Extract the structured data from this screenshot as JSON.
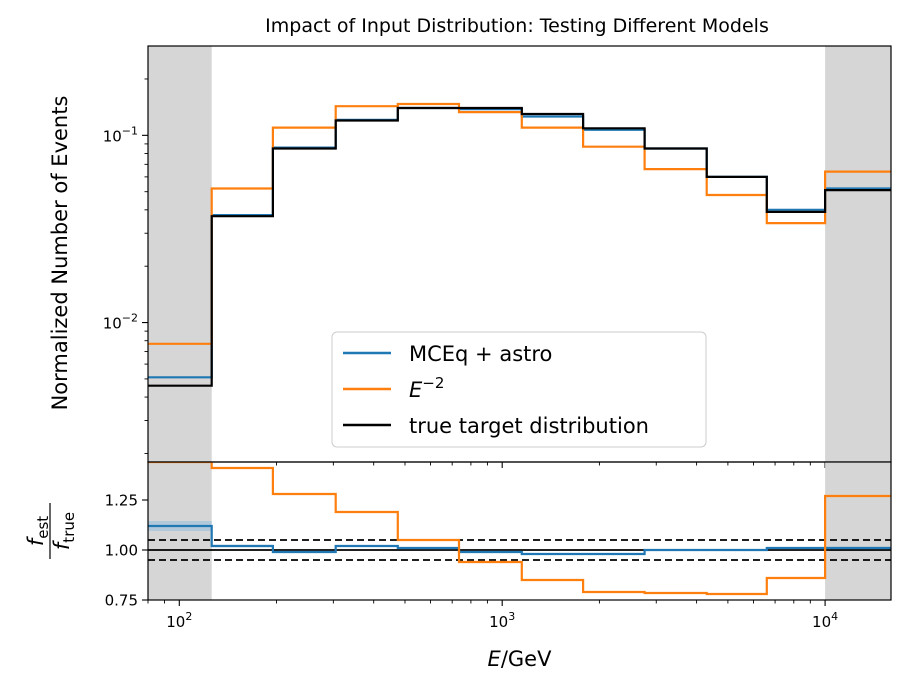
{
  "chart_data": {
    "type": "line",
    "title": "Impact of Input Distribution: Testing Different Models",
    "xlabel": "E/GeV",
    "ylabel_main": "Normalized Number of Events",
    "ylabel_ratio": {
      "numerator": "f",
      "numerator_sub": "est",
      "denominator": "f",
      "denominator_sub": "true"
    },
    "x_scale": "log",
    "y_scale_main": "log",
    "xlim": [
      80,
      16000
    ],
    "ylim_main": [
      0.0018,
      0.3
    ],
    "ylim_ratio": [
      0.75,
      1.44
    ],
    "x_ticks": [
      {
        "value": 100,
        "base": "10",
        "exp": "2"
      },
      {
        "value": 1000,
        "base": "10",
        "exp": "3"
      },
      {
        "value": 10000,
        "base": "10",
        "exp": "4"
      }
    ],
    "y_ticks_main": [
      {
        "value": 0.01,
        "base": "10",
        "exp": "−2"
      },
      {
        "value": 0.1,
        "base": "10",
        "exp": "−1"
      }
    ],
    "y_ticks_ratio": [
      {
        "value": 0.75,
        "label": "0.75"
      },
      {
        "value": 1.0,
        "label": "1.00"
      },
      {
        "value": 1.25,
        "label": "1.25"
      }
    ],
    "shaded_regions": [
      [
        80,
        126
      ],
      [
        10000,
        16000
      ]
    ],
    "bin_edges": [
      80,
      126,
      195,
      305,
      475,
      735,
      1150,
      1780,
      2760,
      4300,
      6600,
      10000,
      16000
    ],
    "series": [
      {
        "name": "MCEq + astro",
        "color": "#1f77b4",
        "values": [
          0.0051,
          0.0375,
          0.086,
          0.121,
          0.14,
          0.138,
          0.126,
          0.107,
          0.085,
          0.06,
          0.04,
          0.052
        ]
      },
      {
        "name_base": "E",
        "name_sup": "−2",
        "color": "#ff7f0e",
        "values": [
          0.0077,
          0.052,
          0.11,
          0.143,
          0.147,
          0.133,
          0.11,
          0.087,
          0.066,
          0.048,
          0.034,
          0.064
        ]
      },
      {
        "name": "true target distribution",
        "color": "#000000",
        "values": [
          0.0046,
          0.037,
          0.085,
          0.12,
          0.14,
          0.14,
          0.13,
          0.109,
          0.085,
          0.06,
          0.039,
          0.051
        ]
      }
    ],
    "ratio_series": [
      {
        "color": "#1f77b4",
        "band_color": "#a8c4dc",
        "values": [
          1.12,
          1.02,
          0.99,
          1.02,
          1.01,
          0.99,
          0.98,
          0.98,
          1.0,
          1.0,
          1.01,
          1.01
        ],
        "band_halfwidth": [
          0.025,
          0.006,
          0.004,
          0.004,
          0.004,
          0.004,
          0.004,
          0.004,
          0.004,
          0.004,
          0.004,
          0.006
        ]
      },
      {
        "color": "#ff7f0e",
        "values": [
          1.44,
          1.41,
          1.28,
          1.19,
          1.05,
          0.94,
          0.85,
          0.79,
          0.785,
          0.78,
          0.86,
          1.27
        ]
      }
    ],
    "ratio_reference_lines": [
      {
        "value": 1.0,
        "style": "solid"
      },
      {
        "value": 1.05,
        "style": "dashed"
      },
      {
        "value": 0.95,
        "style": "dashed"
      }
    ],
    "legend_placement": "lower-center"
  }
}
